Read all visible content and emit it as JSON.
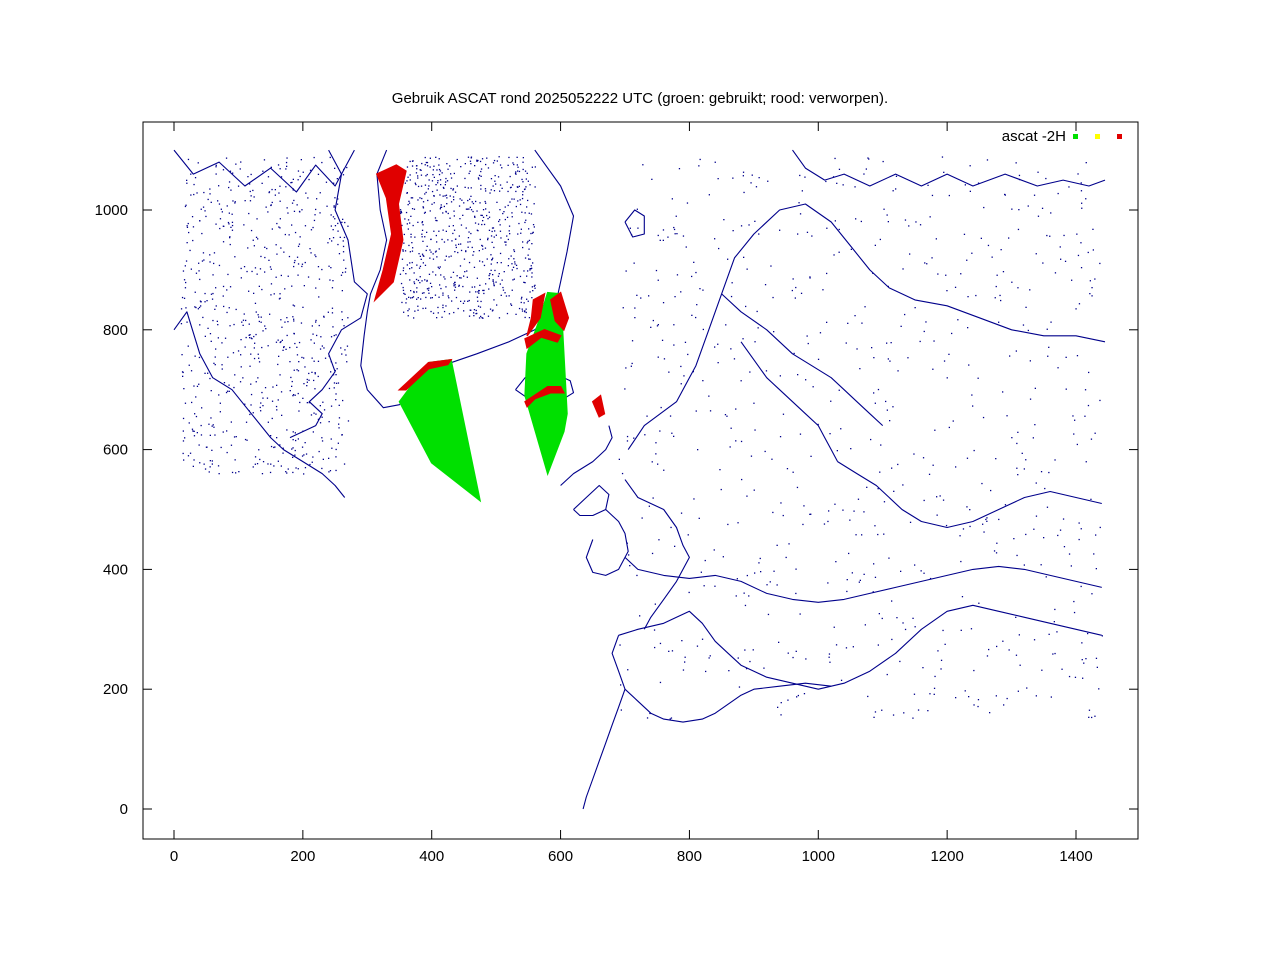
{
  "chart_data": {
    "type": "scatter",
    "title": "Gebruik ASCAT rond 2025052222 UTC (groen: gebruikt; rood: verworpen).",
    "xlabel": "",
    "ylabel": "",
    "xlim": [
      -50,
      1500
    ],
    "ylim": [
      -50,
      1100
    ],
    "x_ticks": [
      "0",
      "200",
      "400",
      "600",
      "800",
      "1000",
      "1200",
      "1400"
    ],
    "y_ticks": [
      "0",
      "200",
      "400",
      "600",
      "800",
      "1000"
    ],
    "x_tick_values": [
      0,
      200,
      400,
      600,
      800,
      1000,
      1200,
      1400
    ],
    "y_tick_values": [
      0,
      200,
      400,
      600,
      800,
      1000
    ],
    "legend_position": "top-right",
    "series": [
      {
        "name": "ascat -2H",
        "color": "#00e000",
        "regions": [
          [
            [
              350,
              680
            ],
            [
              395,
              745
            ],
            [
              430,
              750
            ],
            [
              475,
              515
            ],
            [
              400,
              578
            ]
          ],
          [
            [
              565,
              810
            ],
            [
              580,
              862
            ],
            [
              600,
              860
            ],
            [
              610,
              660
            ],
            [
              605,
              630
            ],
            [
              580,
              560
            ],
            [
              545,
              690
            ],
            [
              548,
              760
            ]
          ]
        ]
      },
      {
        "name": "",
        "color": "#ffff00",
        "regions": []
      },
      {
        "name": "",
        "color": "#e00000",
        "regions": [
          [
            [
              315,
              1060
            ],
            [
              345,
              1075
            ],
            [
              360,
              1065
            ],
            [
              348,
              1010
            ],
            [
              355,
              950
            ],
            [
              340,
              880
            ],
            [
              312,
              850
            ],
            [
              325,
              900
            ],
            [
              338,
              960
            ],
            [
              330,
              1020
            ]
          ],
          [
            [
              350,
              700
            ],
            [
              395,
              745
            ],
            [
              430,
              750
            ],
            [
              425,
              742
            ],
            [
              395,
              735
            ],
            [
              360,
              700
            ]
          ],
          [
            [
              558,
              850
            ],
            [
              575,
              860
            ],
            [
              568,
              820
            ],
            [
              548,
              790
            ],
            [
              555,
              820
            ]
          ],
          [
            [
              585,
              850
            ],
            [
              600,
              862
            ],
            [
              612,
              820
            ],
            [
              605,
              800
            ],
            [
              592,
              815
            ]
          ],
          [
            [
              545,
              680
            ],
            [
              580,
              705
            ],
            [
              600,
              705
            ],
            [
              605,
              695
            ],
            [
              585,
              695
            ],
            [
              560,
              685
            ],
            [
              548,
              672
            ]
          ],
          [
            [
              545,
              785
            ],
            [
              575,
              800
            ],
            [
              600,
              790
            ],
            [
              595,
              780
            ],
            [
              570,
              788
            ],
            [
              548,
              770
            ]
          ],
          [
            [
              650,
              680
            ],
            [
              662,
              690
            ],
            [
              668,
              660
            ],
            [
              660,
              655
            ]
          ]
        ]
      }
    ],
    "coastlines": [
      [
        [
          0,
          1100
        ],
        [
          30,
          1060
        ],
        [
          70,
          1080
        ],
        [
          110,
          1040
        ],
        [
          150,
          1070
        ],
        [
          190,
          1030
        ],
        [
          220,
          1075
        ],
        [
          250,
          1040
        ],
        [
          280,
          1100
        ]
      ],
      [
        [
          0,
          800
        ],
        [
          20,
          830
        ],
        [
          40,
          760
        ],
        [
          60,
          720
        ],
        [
          90,
          700
        ],
        [
          120,
          660
        ],
        [
          150,
          620
        ],
        [
          170,
          600
        ],
        [
          200,
          580
        ],
        [
          230,
          560
        ],
        [
          250,
          540
        ],
        [
          265,
          520
        ]
      ],
      [
        [
          240,
          1100
        ],
        [
          260,
          1060
        ],
        [
          250,
          1000
        ],
        [
          270,
          950
        ],
        [
          280,
          880
        ],
        [
          300,
          860
        ],
        [
          290,
          820
        ],
        [
          260,
          800
        ],
        [
          240,
          760
        ],
        [
          250,
          730
        ],
        [
          230,
          700
        ],
        [
          210,
          680
        ],
        [
          230,
          660
        ],
        [
          220,
          640
        ],
        [
          180,
          620
        ]
      ],
      [
        [
          330,
          1100
        ],
        [
          315,
          1060
        ],
        [
          320,
          1000
        ],
        [
          330,
          950
        ],
        [
          320,
          900
        ],
        [
          305,
          860
        ],
        [
          300,
          830
        ],
        [
          295,
          790
        ],
        [
          290,
          740
        ],
        [
          300,
          700
        ],
        [
          325,
          670
        ],
        [
          350,
          675
        ],
        [
          370,
          700
        ],
        [
          400,
          720
        ],
        [
          430,
          745
        ],
        [
          470,
          760
        ],
        [
          520,
          780
        ],
        [
          560,
          800
        ],
        [
          590,
          830
        ],
        [
          600,
          880
        ],
        [
          610,
          930
        ],
        [
          620,
          990
        ],
        [
          600,
          1040
        ],
        [
          580,
          1070
        ],
        [
          560,
          1100
        ]
      ],
      [
        [
          530,
          700
        ],
        [
          545,
          720
        ],
        [
          570,
          730
        ],
        [
          595,
          725
        ],
        [
          615,
          715
        ],
        [
          620,
          695
        ],
        [
          605,
          685
        ],
        [
          575,
          680
        ],
        [
          550,
          685
        ],
        [
          530,
          700
        ]
      ],
      [
        [
          700,
          980
        ],
        [
          715,
          1000
        ],
        [
          730,
          990
        ],
        [
          730,
          960
        ],
        [
          712,
          955
        ],
        [
          700,
          980
        ]
      ],
      [
        [
          705,
          600
        ],
        [
          730,
          640
        ],
        [
          780,
          680
        ],
        [
          810,
          740
        ],
        [
          830,
          800
        ],
        [
          850,
          860
        ],
        [
          870,
          920
        ],
        [
          900,
          960
        ],
        [
          940,
          1000
        ],
        [
          980,
          1010
        ],
        [
          1020,
          980
        ],
        [
          1050,
          940
        ],
        [
          1080,
          900
        ],
        [
          1110,
          870
        ],
        [
          1150,
          850
        ],
        [
          1200,
          840
        ],
        [
          1250,
          820
        ],
        [
          1300,
          800
        ],
        [
          1350,
          790
        ],
        [
          1400,
          790
        ],
        [
          1445,
          780
        ]
      ],
      [
        [
          850,
          860
        ],
        [
          880,
          830
        ],
        [
          920,
          800
        ],
        [
          960,
          760
        ],
        [
          990,
          740
        ],
        [
          1020,
          720
        ],
        [
          1040,
          700
        ],
        [
          1060,
          680
        ],
        [
          1080,
          660
        ],
        [
          1100,
          640
        ]
      ],
      [
        [
          880,
          780
        ],
        [
          900,
          750
        ],
        [
          920,
          720
        ],
        [
          940,
          700
        ],
        [
          960,
          680
        ],
        [
          980,
          660
        ],
        [
          1000,
          640
        ],
        [
          1010,
          620
        ],
        [
          1020,
          600
        ],
        [
          1030,
          580
        ]
      ],
      [
        [
          700,
          550
        ],
        [
          720,
          520
        ],
        [
          760,
          500
        ],
        [
          780,
          470
        ],
        [
          790,
          440
        ],
        [
          800,
          420
        ],
        [
          780,
          380
        ],
        [
          760,
          350
        ],
        [
          740,
          320
        ],
        [
          730,
          300
        ]
      ],
      [
        [
          670,
          500
        ],
        [
          690,
          480
        ],
        [
          700,
          460
        ],
        [
          705,
          430
        ],
        [
          690,
          400
        ],
        [
          670,
          390
        ],
        [
          650,
          395
        ],
        [
          640,
          420
        ],
        [
          650,
          450
        ]
      ],
      [
        [
          700,
          420
        ],
        [
          720,
          400
        ],
        [
          760,
          390
        ],
        [
          800,
          385
        ],
        [
          840,
          390
        ],
        [
          880,
          380
        ],
        [
          920,
          360
        ],
        [
          960,
          350
        ],
        [
          1000,
          345
        ],
        [
          1040,
          350
        ],
        [
          1080,
          360
        ],
        [
          1120,
          370
        ],
        [
          1160,
          380
        ],
        [
          1200,
          390
        ],
        [
          1240,
          400
        ],
        [
          1280,
          405
        ],
        [
          1320,
          400
        ],
        [
          1360,
          390
        ],
        [
          1400,
          380
        ],
        [
          1440,
          370
        ]
      ],
      [
        [
          690,
          290
        ],
        [
          720,
          300
        ],
        [
          760,
          310
        ],
        [
          780,
          320
        ],
        [
          800,
          330
        ],
        [
          820,
          310
        ],
        [
          840,
          280
        ],
        [
          860,
          260
        ],
        [
          880,
          240
        ],
        [
          900,
          230
        ],
        [
          920,
          220
        ],
        [
          960,
          210
        ],
        [
          1000,
          200
        ],
        [
          1040,
          210
        ],
        [
          1080,
          230
        ],
        [
          1120,
          260
        ],
        [
          1160,
          300
        ],
        [
          1200,
          330
        ],
        [
          1240,
          340
        ],
        [
          1280,
          330
        ],
        [
          1320,
          320
        ],
        [
          1360,
          310
        ],
        [
          1400,
          300
        ],
        [
          1440,
          290
        ]
      ],
      [
        [
          690,
          290
        ],
        [
          680,
          260
        ],
        [
          690,
          230
        ],
        [
          700,
          200
        ],
        [
          720,
          180
        ],
        [
          740,
          160
        ],
        [
          760,
          150
        ],
        [
          790,
          145
        ],
        [
          820,
          150
        ],
        [
          840,
          160
        ],
        [
          860,
          175
        ],
        [
          880,
          190
        ],
        [
          900,
          200
        ],
        [
          940,
          205
        ],
        [
          980,
          210
        ],
        [
          1020,
          205
        ]
      ],
      [
        [
          700,
          200
        ],
        [
          690,
          170
        ],
        [
          680,
          140
        ],
        [
          670,
          110
        ],
        [
          660,
          80
        ],
        [
          650,
          50
        ],
        [
          640,
          20
        ],
        [
          635,
          0
        ]
      ],
      [
        [
          600,
          540
        ],
        [
          620,
          560
        ],
        [
          650,
          580
        ],
        [
          670,
          600
        ],
        [
          680,
          620
        ],
        [
          675,
          640
        ]
      ],
      [
        [
          620,
          500
        ],
        [
          640,
          520
        ],
        [
          660,
          540
        ],
        [
          675,
          525
        ],
        [
          670,
          500
        ],
        [
          650,
          490
        ],
        [
          630,
          490
        ],
        [
          620,
          500
        ]
      ],
      [
        [
          1030,
          580
        ],
        [
          1060,
          560
        ],
        [
          1090,
          540
        ],
        [
          1110,
          520
        ],
        [
          1130,
          500
        ],
        [
          1160,
          480
        ],
        [
          1200,
          470
        ],
        [
          1240,
          480
        ],
        [
          1280,
          500
        ],
        [
          1320,
          520
        ],
        [
          1360,
          530
        ],
        [
          1400,
          520
        ],
        [
          1440,
          510
        ]
      ],
      [
        [
          960,
          1100
        ],
        [
          980,
          1070
        ],
        [
          1010,
          1050
        ],
        [
          1040,
          1060
        ],
        [
          1080,
          1040
        ],
        [
          1120,
          1060
        ],
        [
          1160,
          1040
        ],
        [
          1200,
          1060
        ],
        [
          1240,
          1040
        ],
        [
          1290,
          1060
        ],
        [
          1340,
          1040
        ],
        [
          1380,
          1050
        ],
        [
          1420,
          1040
        ],
        [
          1445,
          1050
        ]
      ]
    ]
  }
}
